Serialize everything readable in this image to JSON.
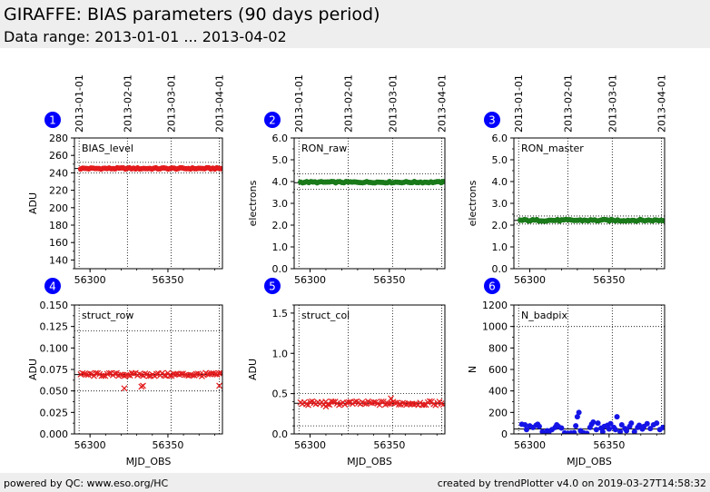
{
  "header": {
    "title": "GIRAFFE: BIAS parameters (90 days period)",
    "subtitle": "Data range: 2013-01-01 ... 2013-04-02"
  },
  "footer": {
    "left": "powered by QC: www.eso.org/HC",
    "right": "created by trendPlotter v4.0 on 2019-03-27T14:58:32"
  },
  "colors": {
    "red": "#e31a1c",
    "green": "#1a7a1a",
    "blue": "#1414e6",
    "badge": "#0000ff"
  },
  "date_ticks": [
    {
      "label": "2013-01-01",
      "mjd": 56293
    },
    {
      "label": "2013-02-01",
      "mjd": 56324
    },
    {
      "label": "2013-03-01",
      "mjd": 56352
    },
    {
      "label": "2013-04-01",
      "mjd": 56383
    }
  ],
  "chart_data": [
    {
      "id": 1,
      "badge": "1",
      "type": "scatter",
      "label": "BIAS_level",
      "ylabel": "ADU",
      "xlabel": "",
      "xlim": [
        56290,
        56385
      ],
      "ylim": [
        130,
        280
      ],
      "yticks": [
        140,
        160,
        180,
        200,
        220,
        240,
        260,
        280
      ],
      "ytick_labels": [
        "140",
        "160",
        "180",
        "200",
        "220",
        "240",
        "260",
        "280"
      ],
      "minor_step": 10,
      "xticks": [
        56300,
        56350
      ],
      "xtick_labels": [
        "56300",
        "56350"
      ],
      "hlines_solid": [
        245
      ],
      "hlines_dotted": [
        240,
        252
      ],
      "marker": "o",
      "color": "#e31a1c",
      "series": [
        {
          "x_range": [
            56294,
            56384
          ],
          "n": 70,
          "y_base": 245,
          "y_amp": 0.8
        }
      ],
      "outliers": []
    },
    {
      "id": 2,
      "badge": "2",
      "type": "scatter",
      "label": "RON_raw",
      "ylabel": "electrons",
      "xlabel": "",
      "xlim": [
        56290,
        56385
      ],
      "ylim": [
        0,
        6
      ],
      "yticks": [
        0,
        1,
        2,
        3,
        4,
        5,
        6
      ],
      "ytick_labels": [
        "0.0",
        "1.0",
        "2.0",
        "3.0",
        "4.0",
        "5.0",
        "6.0"
      ],
      "minor_step": 0.5,
      "xticks": [
        56300,
        56350
      ],
      "xtick_labels": [
        "56300",
        "56350"
      ],
      "hlines_solid": [
        3.95
      ],
      "hlines_dotted": [
        3.65,
        4.35
      ],
      "marker": "o",
      "color": "#1a7a1a",
      "series": [
        {
          "x_range": [
            56294,
            56384
          ],
          "n": 70,
          "y_base": 3.97,
          "y_amp": 0.03
        }
      ],
      "outliers": []
    },
    {
      "id": 3,
      "badge": "3",
      "type": "scatter",
      "label": "RON_master",
      "ylabel": "electrons",
      "xlabel": "",
      "xlim": [
        56290,
        56385
      ],
      "ylim": [
        0,
        6
      ],
      "yticks": [
        0,
        1,
        2,
        3,
        4,
        5,
        6
      ],
      "ytick_labels": [
        "0.0",
        "1.0",
        "2.0",
        "3.0",
        "4.0",
        "5.0",
        "6.0"
      ],
      "minor_step": 0.5,
      "xticks": [
        56300,
        56350
      ],
      "xtick_labels": [
        "56300",
        "56350"
      ],
      "hlines_solid": [
        2.22
      ],
      "hlines_dotted": [
        2.05,
        2.42
      ],
      "marker": "o",
      "color": "#1a7a1a",
      "series": [
        {
          "x_range": [
            56294,
            56384
          ],
          "n": 70,
          "y_base": 2.22,
          "y_amp": 0.04
        }
      ],
      "outliers": []
    },
    {
      "id": 4,
      "badge": "4",
      "type": "scatter",
      "label": "struct_row",
      "ylabel": "ADU",
      "xlabel": "MJD_OBS",
      "xlim": [
        56290,
        56385
      ],
      "ylim": [
        0,
        0.15
      ],
      "yticks": [
        0,
        0.025,
        0.05,
        0.075,
        0.1,
        0.125,
        0.15
      ],
      "ytick_labels": [
        "0.000",
        "0.025",
        "0.050",
        "0.075",
        "0.100",
        "0.125",
        "0.150"
      ],
      "minor_step": 0.0125,
      "xticks": [
        56300,
        56350
      ],
      "xtick_labels": [
        "56300",
        "56350"
      ],
      "hlines_solid": [
        0.069
      ],
      "hlines_dotted": [
        0.05,
        0.12
      ],
      "marker": "x",
      "color": "#e31a1c",
      "series": [
        {
          "x_range": [
            56294,
            56384
          ],
          "n": 75,
          "y_base": 0.069,
          "y_amp": 0.002
        }
      ],
      "outliers": [
        [
          56322,
          0.053
        ],
        [
          56333,
          0.055
        ],
        [
          56334,
          0.056
        ],
        [
          56383,
          0.056
        ]
      ]
    },
    {
      "id": 5,
      "badge": "5",
      "type": "scatter",
      "label": "struct_col",
      "ylabel": "ADU",
      "xlabel": "MJD_OBS",
      "xlim": [
        56290,
        56385
      ],
      "ylim": [
        0,
        1.6
      ],
      "yticks": [
        0,
        0.5,
        1.0,
        1.5
      ],
      "ytick_labels": [
        "0.0",
        "0.5",
        "1.0",
        "1.5"
      ],
      "minor_step": 0.1,
      "xticks": [
        56300,
        56350
      ],
      "xtick_labels": [
        "56300",
        "56350"
      ],
      "hlines_solid": [
        0.38
      ],
      "hlines_dotted": [
        0.1,
        0.5
      ],
      "marker": "x",
      "color": "#e31a1c",
      "series": [
        {
          "x_range": [
            56294,
            56384
          ],
          "n": 75,
          "y_base": 0.38,
          "y_amp": 0.025
        }
      ],
      "outliers": [
        [
          56310,
          0.34
        ],
        [
          56351,
          0.44
        ]
      ]
    },
    {
      "id": 6,
      "badge": "6",
      "type": "scatter",
      "label": "N_badpix",
      "ylabel": "N",
      "xlabel": "MJD_OBS",
      "xlim": [
        56290,
        56385
      ],
      "ylim": [
        0,
        1200
      ],
      "yticks": [
        0,
        200,
        400,
        600,
        800,
        1000,
        1200
      ],
      "ytick_labels": [
        "0",
        "200",
        "400",
        "600",
        "800",
        "1000",
        "1200"
      ],
      "minor_step": 100,
      "xticks": [
        56300,
        56350
      ],
      "xtick_labels": [
        "56300",
        "56350"
      ],
      "hlines_solid": [
        45
      ],
      "hlines_dotted": [
        1000
      ],
      "marker": "o",
      "color": "#1414e6",
      "series": [],
      "points": [
        [
          56295,
          90
        ],
        [
          56297,
          85
        ],
        [
          56298,
          40
        ],
        [
          56300,
          75
        ],
        [
          56302,
          60
        ],
        [
          56304,
          80
        ],
        [
          56305,
          90
        ],
        [
          56306,
          70
        ],
        [
          56308,
          20
        ],
        [
          56309,
          5
        ],
        [
          56311,
          30
        ],
        [
          56312,
          15
        ],
        [
          56314,
          40
        ],
        [
          56316,
          60
        ],
        [
          56317,
          85
        ],
        [
          56318,
          70
        ],
        [
          56320,
          55
        ],
        [
          56322,
          10
        ],
        [
          56324,
          5
        ],
        [
          56326,
          8
        ],
        [
          56328,
          12
        ],
        [
          56329,
          75
        ],
        [
          56330,
          160
        ],
        [
          56331,
          200
        ],
        [
          56332,
          30
        ],
        [
          56334,
          10
        ],
        [
          56336,
          5
        ],
        [
          56338,
          60
        ],
        [
          56339,
          90
        ],
        [
          56340,
          110
        ],
        [
          56342,
          40
        ],
        [
          56343,
          100
        ],
        [
          56345,
          55
        ],
        [
          56346,
          20
        ],
        [
          56347,
          70
        ],
        [
          56349,
          80
        ],
        [
          56350,
          45
        ],
        [
          56351,
          95
        ],
        [
          56353,
          60
        ],
        [
          56354,
          40
        ],
        [
          56355,
          160
        ],
        [
          56357,
          20
        ],
        [
          56358,
          85
        ],
        [
          56360,
          50
        ],
        [
          56361,
          30
        ],
        [
          56363,
          70
        ],
        [
          56364,
          100
        ],
        [
          56366,
          20
        ],
        [
          56368,
          60
        ],
        [
          56369,
          80
        ],
        [
          56371,
          45
        ],
        [
          56372,
          70
        ],
        [
          56374,
          95
        ],
        [
          56376,
          50
        ],
        [
          56378,
          85
        ],
        [
          56380,
          100
        ],
        [
          56382,
          40
        ],
        [
          56384,
          60
        ]
      ],
      "outliers": []
    }
  ]
}
